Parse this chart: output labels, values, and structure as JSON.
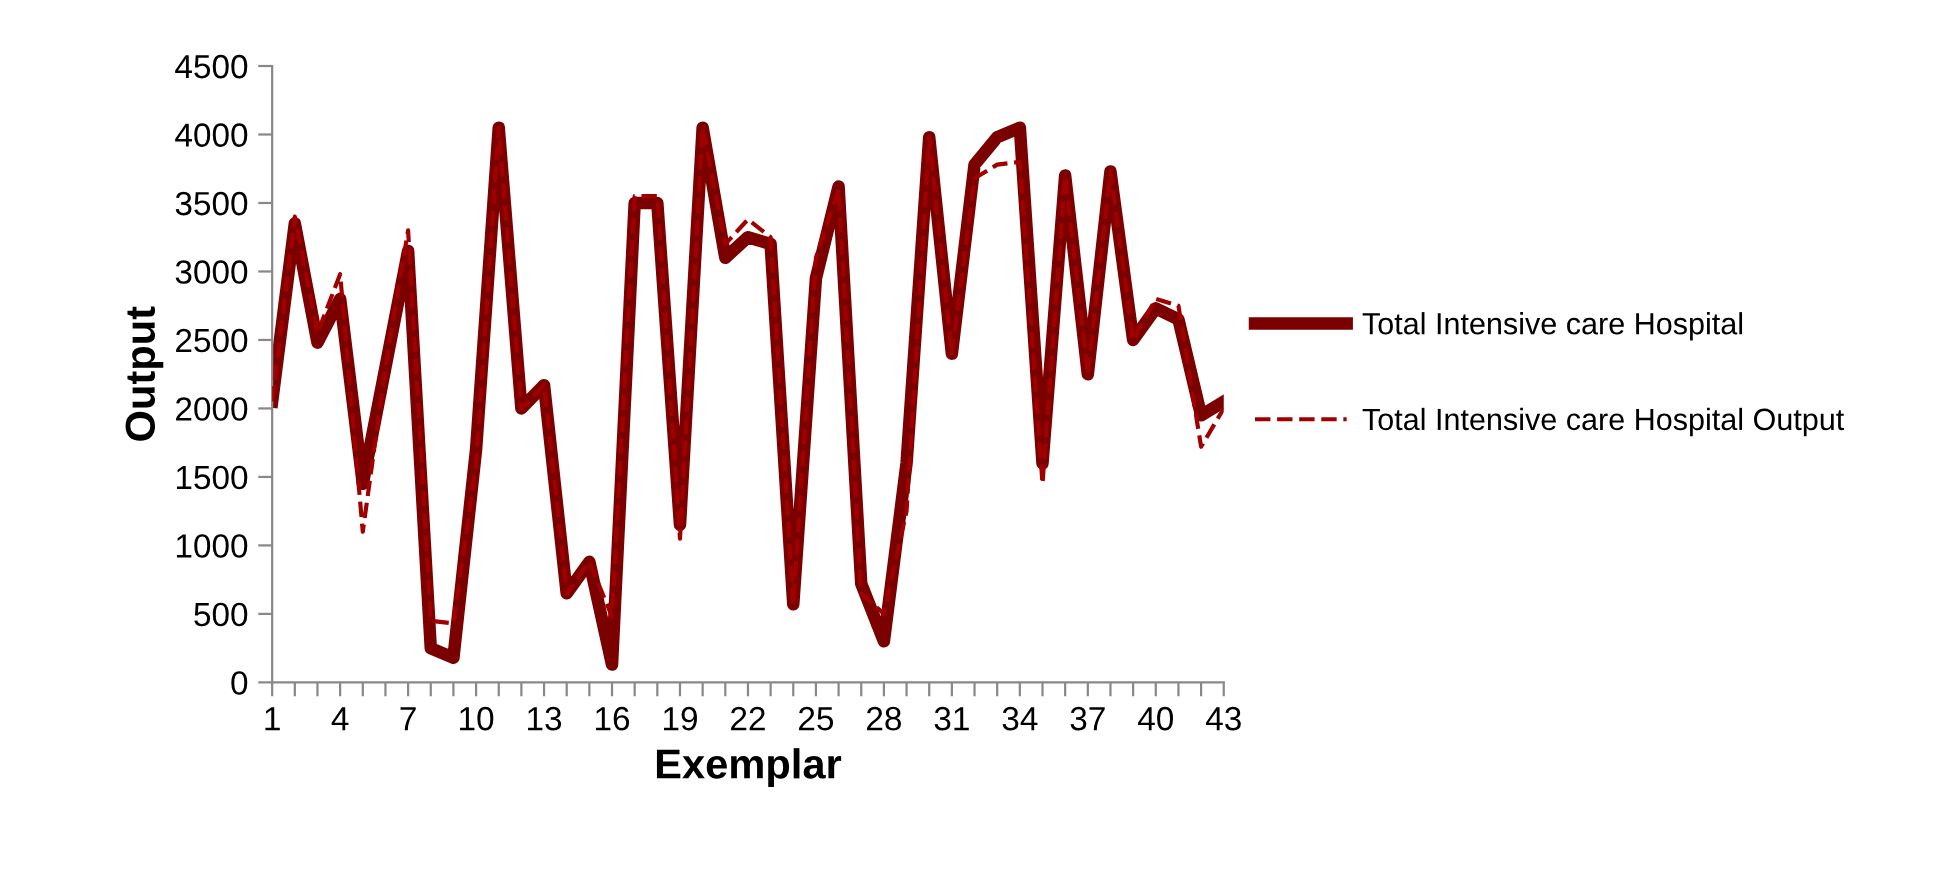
{
  "chart_data": {
    "type": "line",
    "xlabel": "Exemplar",
    "ylabel": "Output",
    "categories": [
      "1",
      null,
      null,
      "4",
      null,
      null,
      "7",
      null,
      null,
      "10",
      null,
      null,
      "13",
      null,
      null,
      "16",
      null,
      null,
      "19",
      null,
      null,
      "22",
      null,
      null,
      "25",
      null,
      null,
      "28",
      null,
      null,
      "31",
      null,
      null,
      "34",
      null,
      null,
      "37",
      null,
      null,
      "40",
      null,
      null,
      "43"
    ],
    "ylim": [
      0,
      4500
    ],
    "yticks": [
      0,
      500,
      1000,
      1500,
      2000,
      2500,
      3000,
      3500,
      4000,
      4500
    ],
    "grid": false,
    "legend": "right",
    "marker": "none",
    "series": [
      {
        "name": "Total Intensive care Hospital",
        "color": "#7b0000",
        "line_style": "solid",
        "values": [
          2050,
          3350,
          2480,
          2800,
          1450,
          2300,
          3150,
          250,
          180,
          1700,
          4050,
          2000,
          2170,
          650,
          880,
          130,
          3500,
          3500,
          1150,
          4050,
          3100,
          3250,
          3200,
          570,
          2950,
          3620,
          720,
          300,
          1600,
          3980,
          2400,
          3780,
          3980,
          4050,
          1600,
          3700,
          2250,
          3730,
          2500,
          2730,
          2650,
          1950,
          2050
        ]
      },
      {
        "name": "Total Intensive care Hospital Output",
        "color": "#a00000",
        "line_style": "dashed",
        "values": [
          2050,
          3400,
          2550,
          2980,
          1100,
          2300,
          3300,
          450,
          430,
          1600,
          4050,
          2000,
          2170,
          650,
          880,
          480,
          3550,
          3550,
          1050,
          4050,
          3200,
          3380,
          3250,
          570,
          3100,
          3600,
          650,
          500,
          1250,
          3980,
          2400,
          3680,
          3780,
          3800,
          1450,
          3700,
          2250,
          3730,
          2500,
          2800,
          2750,
          1720,
          2000
        ]
      }
    ]
  }
}
